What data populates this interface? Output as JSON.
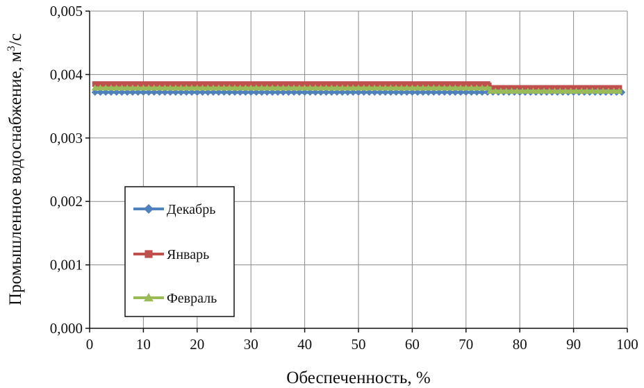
{
  "chart_data": {
    "type": "line",
    "title": "",
    "xlabel": "Обеспеченность, %",
    "ylabel_main": "Промышленное водоснабжение, м",
    "ylabel_sup": "3",
    "ylabel_tail": "/с",
    "xlim": [
      0,
      100
    ],
    "ylim": [
      0,
      0.005
    ],
    "x_ticks": [
      0,
      10,
      20,
      30,
      40,
      50,
      60,
      70,
      80,
      90,
      100
    ],
    "x_tick_labels": [
      "0",
      "10",
      "20",
      "30",
      "40",
      "50",
      "60",
      "70",
      "80",
      "90",
      "100"
    ],
    "y_ticks": [
      0,
      0.001,
      0.002,
      0.003,
      0.004,
      0.005
    ],
    "y_tick_labels": [
      "0,000",
      "0,001",
      "0,002",
      "0,003",
      "0,004",
      "0,005"
    ],
    "grid": true,
    "legend_position": "left-bottom",
    "series": [
      {
        "name": "Декабрь",
        "color": "#4f81bd",
        "marker": "diamond",
        "segments": [
          {
            "x_start": 1,
            "x_end": 99,
            "value": 0.00372
          }
        ]
      },
      {
        "name": "Январь",
        "color": "#c0504d",
        "marker": "square",
        "segments": [
          {
            "x_start": 1,
            "x_end": 74.5,
            "value": 0.00385
          },
          {
            "x_start": 74.5,
            "x_end": 99,
            "value": 0.00379
          }
        ]
      },
      {
        "name": "Февраль",
        "color": "#9bbb59",
        "marker": "triangle",
        "segments": [
          {
            "x_start": 1,
            "x_end": 74.5,
            "value": 0.00379
          },
          {
            "x_start": 74.5,
            "x_end": 99,
            "value": 0.00374
          }
        ]
      }
    ]
  }
}
